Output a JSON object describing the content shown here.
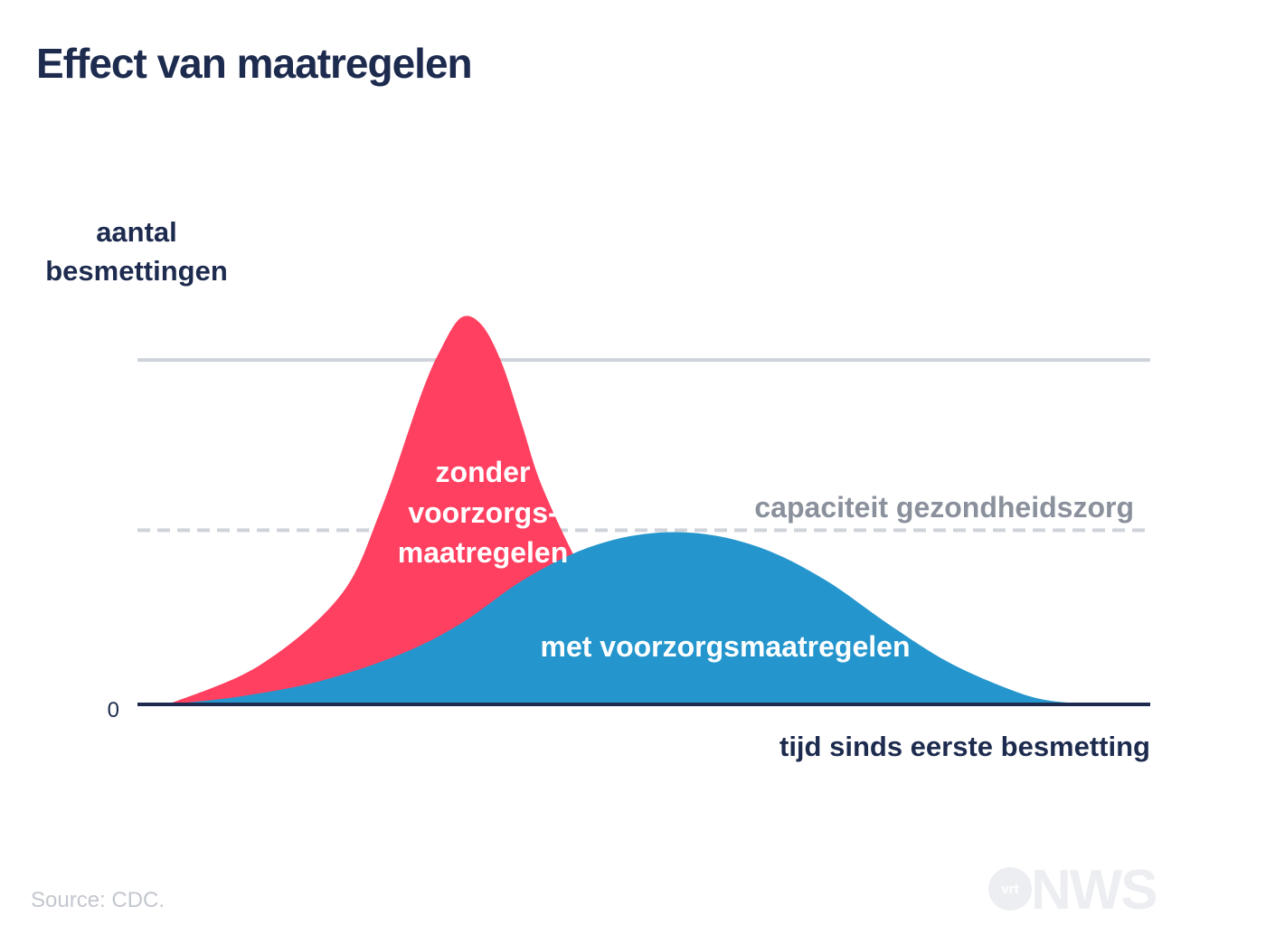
{
  "chart_data": {
    "type": "area",
    "title": "Effect van maatregelen",
    "ylabel": [
      "aantal",
      "besmettingen"
    ],
    "xlabel": "tijd sinds eerste besmetting",
    "y_ticks": [
      "0"
    ],
    "xlim": [
      0,
      100
    ],
    "ylim": [
      0,
      100
    ],
    "grid": true,
    "series": [
      {
        "name": "zonder voorzorgs-maatregelen",
        "label_lines": [
          "zonder",
          "voorzorgs-",
          "maatregelen"
        ],
        "color": "#ff4060",
        "x": [
          3,
          12,
          20,
          24,
          28,
          30,
          32,
          34,
          36,
          38,
          40,
          44,
          48,
          52,
          56,
          60
        ],
        "y": [
          0,
          10,
          28,
          50,
          80,
          92,
          100,
          98,
          88,
          72,
          56,
          34,
          18,
          8,
          3,
          0
        ]
      },
      {
        "name": "met voorzorgsmaatregelen",
        "label_lines": [
          "met voorzorgsmaatregelen"
        ],
        "color": "#2496cd",
        "x": [
          3,
          10,
          18,
          26,
          32,
          38,
          44,
          50,
          56,
          62,
          68,
          74,
          80,
          86,
          90,
          95
        ],
        "y": [
          0,
          2,
          6,
          13,
          21,
          32,
          40,
          44,
          44,
          40,
          32,
          21,
          11,
          4,
          1,
          0
        ]
      }
    ],
    "reference_lines": [
      {
        "label": "",
        "y": 89,
        "style": "solid",
        "color": "#cfd3da"
      },
      {
        "label": "capaciteit gezondheidszorg",
        "y": 45,
        "style": "dashed",
        "color": "#cfd3da",
        "label_color": "#8a909c"
      }
    ],
    "axis_color": "#1d2b4f",
    "text_color": "#1d2b4f"
  },
  "footer": {
    "source": "Source: CDC.",
    "logo_main": "NWS",
    "logo_small": "vrt"
  }
}
